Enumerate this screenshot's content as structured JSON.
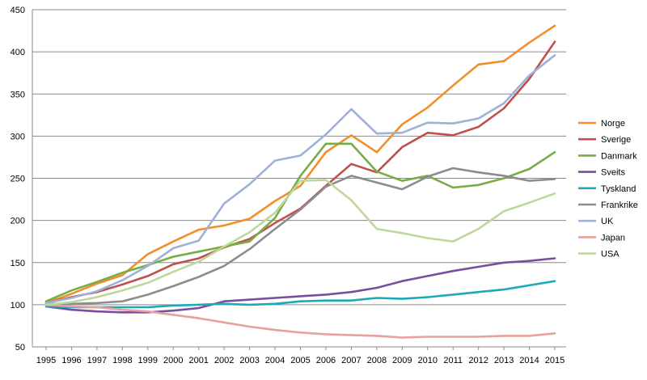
{
  "chart_data": {
    "type": "line",
    "title": "",
    "xlabel": "",
    "ylabel": "",
    "x": [
      "1995",
      "1996",
      "1997",
      "1998",
      "1999",
      "2000",
      "2001",
      "2002",
      "2003",
      "2004",
      "2005",
      "2006",
      "2007",
      "2008",
      "2009",
      "2010",
      "2011",
      "2012",
      "2013",
      "2014",
      "2015"
    ],
    "ylim": [
      50,
      450
    ],
    "yticks": [
      50,
      100,
      150,
      200,
      250,
      300,
      350,
      400,
      450
    ],
    "grid": "horizontal",
    "legend_position": "right",
    "series": [
      {
        "name": "Norge",
        "color": "#F28E2B",
        "values": [
          102,
          113,
          125,
          135,
          160,
          175,
          189,
          194,
          202,
          223,
          241,
          281,
          301,
          281,
          314,
          334,
          360,
          385,
          389,
          411,
          431
        ]
      },
      {
        "name": "Sverige",
        "color": "#C0504D",
        "values": [
          102,
          109,
          115,
          124,
          134,
          148,
          155,
          168,
          178,
          197,
          214,
          241,
          267,
          257,
          287,
          304,
          301,
          311,
          333,
          368,
          412
        ]
      },
      {
        "name": "Danmark",
        "color": "#77AD45",
        "values": [
          104,
          117,
          127,
          138,
          147,
          157,
          163,
          169,
          175,
          203,
          253,
          291,
          291,
          258,
          247,
          253,
          239,
          242,
          250,
          261,
          281
        ]
      },
      {
        "name": "Sveits",
        "color": "#7B4DA0",
        "values": [
          98,
          94,
          92,
          91,
          91,
          93,
          96,
          104,
          106,
          108,
          110,
          112,
          115,
          120,
          128,
          134,
          140,
          145,
          150,
          152,
          155
        ]
      },
      {
        "name": "Tyskland",
        "color": "#1BAAB9",
        "values": [
          98,
          97,
          97,
          97,
          97,
          99,
          100,
          101,
          100,
          101,
          104,
          105,
          105,
          108,
          107,
          109,
          112,
          115,
          118,
          123,
          128
        ]
      },
      {
        "name": "Frankrike",
        "color": "#8C8C8C",
        "values": [
          101,
          101,
          102,
          104,
          112,
          122,
          133,
          146,
          166,
          190,
          213,
          240,
          253,
          245,
          237,
          252,
          262,
          257,
          253,
          247,
          249
        ]
      },
      {
        "name": "UK",
        "color": "#9CB2D6",
        "values": [
          102,
          108,
          116,
          129,
          146,
          167,
          176,
          220,
          243,
          271,
          277,
          302,
          332,
          303,
          304,
          316,
          315,
          321,
          339,
          372,
          396
        ]
      },
      {
        "name": "Japan",
        "color": "#E8A09C",
        "values": [
          100,
          98,
          97,
          94,
          92,
          88,
          84,
          79,
          74,
          70,
          67,
          65,
          64,
          63,
          61,
          62,
          62,
          62,
          63,
          63,
          66
        ]
      },
      {
        "name": "USA",
        "color": "#BDD89A",
        "values": [
          100,
          103,
          109,
          117,
          126,
          139,
          151,
          169,
          186,
          209,
          247,
          248,
          224,
          190,
          185,
          179,
          175,
          190,
          211,
          221,
          232
        ]
      }
    ]
  }
}
